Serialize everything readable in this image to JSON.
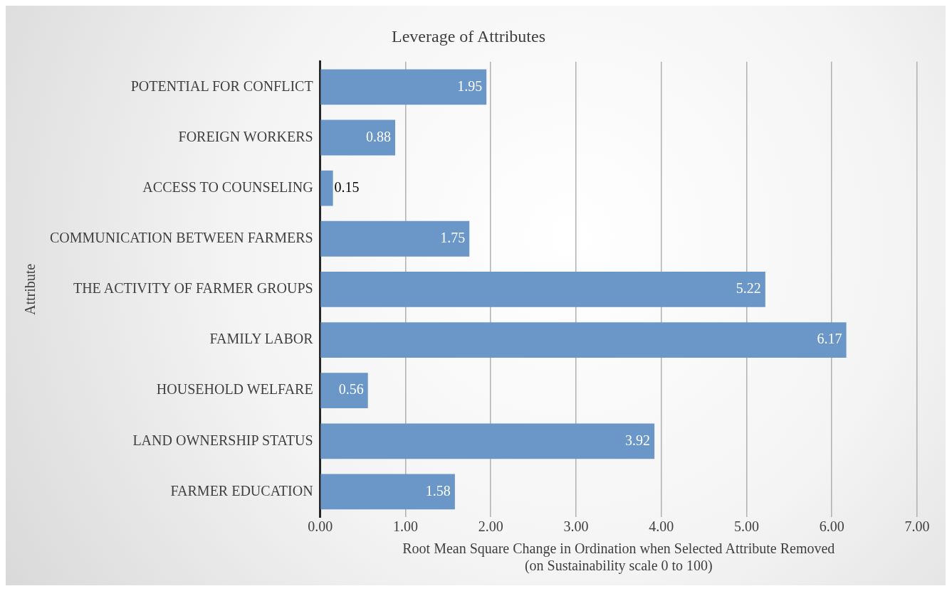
{
  "chart_data": {
    "type": "bar",
    "orientation": "horizontal",
    "title": "Leverage of Attributes",
    "xlabel": "Root Mean Square Change in Ordination when Selected Attribute Removed\n(on Sustainability scale 0 to 100)",
    "ylabel": "Attribute",
    "categories": [
      "POTENTIAL FOR CONFLICT",
      "FOREIGN WORKERS",
      "ACCESS TO COUNSELING",
      "COMMUNICATION BETWEEN FARMERS",
      "THE ACTIVITY OF FARMER GROUPS",
      "FAMILY LABOR",
      "HOUSEHOLD WELFARE",
      "LAND OWNERSHIP STATUS",
      "FARMER EDUCATION"
    ],
    "values": [
      1.95,
      0.88,
      0.15,
      1.75,
      5.22,
      6.17,
      0.56,
      3.92,
      1.58
    ],
    "color": "#6a96c8",
    "data_labels": true,
    "grid": "x",
    "legend": false,
    "xlim": [
      0,
      7
    ],
    "xticks": [
      {
        "value": 0,
        "label": "0.00"
      },
      {
        "value": 1,
        "label": "1.00"
      },
      {
        "value": 2,
        "label": "2.00"
      },
      {
        "value": 3,
        "label": "3.00"
      },
      {
        "value": 4,
        "label": "4.00"
      },
      {
        "value": 5,
        "label": "5.00"
      },
      {
        "value": 6,
        "label": "6.00"
      },
      {
        "value": 7,
        "label": "7.00"
      }
    ]
  }
}
